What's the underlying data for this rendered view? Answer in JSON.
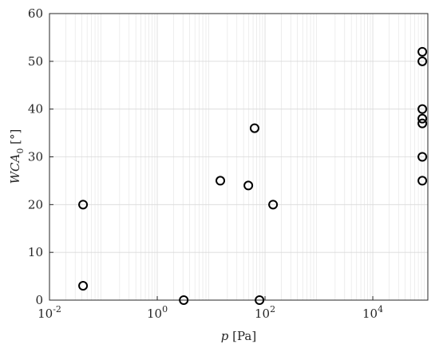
{
  "chart_data": {
    "type": "scatter",
    "xlabel": {
      "text": "p",
      "unit": "[Pa]"
    },
    "ylabel": {
      "text": "WCA",
      "subscript": "0",
      "unit": "[°]"
    },
    "x": [
      0.042,
      0.042,
      3.1,
      14.8,
      49,
      64,
      79,
      141,
      83000,
      83000,
      83000,
      83000,
      83000,
      83000,
      83000
    ],
    "series": [
      {
        "color": "#000000",
        "values": [
          20,
          3,
          0,
          25,
          24,
          36,
          0,
          20,
          52,
          50,
          40,
          38,
          37,
          30,
          25
        ]
      }
    ],
    "xscale": "log",
    "xlim": [
      0.01,
      105000
    ],
    "ylim": [
      0,
      60
    ],
    "xticks": [
      {
        "value": 0.01,
        "label": "10",
        "exponent": "-2"
      },
      {
        "value": 1,
        "label": "10",
        "exponent": "0"
      },
      {
        "value": 100,
        "label": "10",
        "exponent": "2"
      },
      {
        "value": 10000,
        "label": "10",
        "exponent": "4"
      }
    ],
    "yticks": [
      0,
      10,
      20,
      30,
      40,
      50,
      60
    ],
    "grid": true,
    "minor_grid": true
  }
}
